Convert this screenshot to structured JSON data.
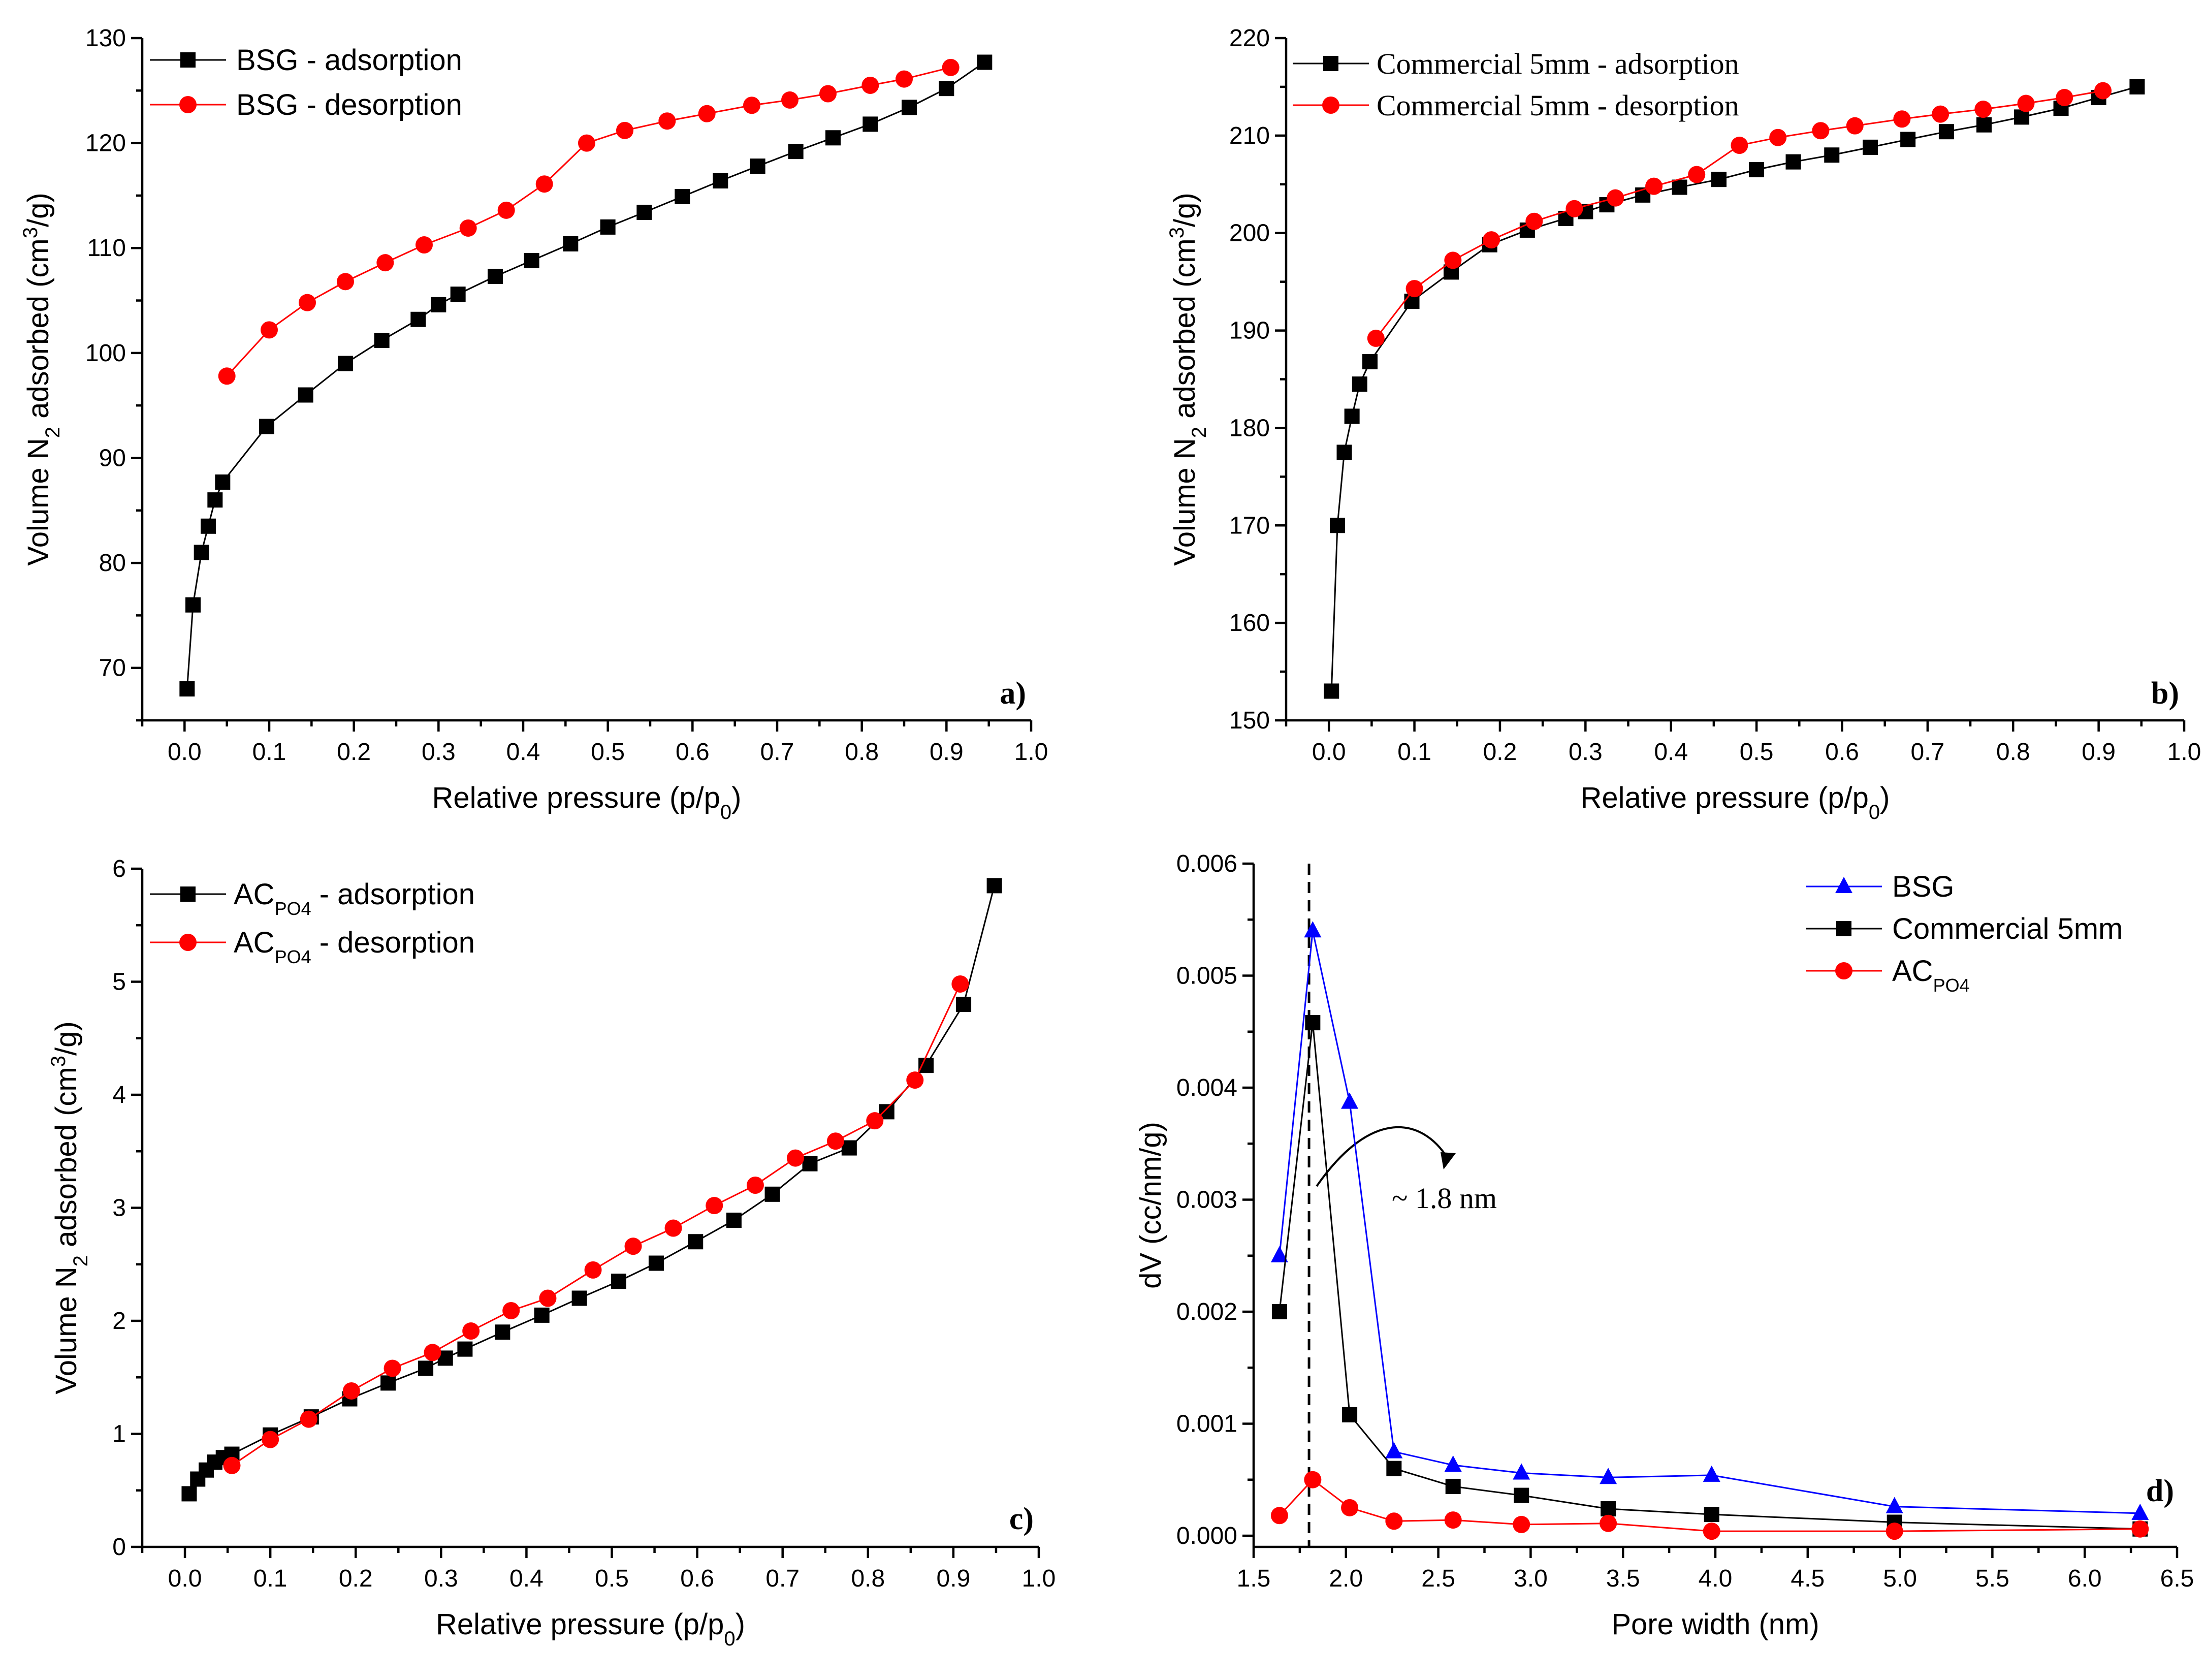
{
  "chart_data": [
    {
      "id": "a",
      "type": "scatter",
      "panel_label": "a)",
      "xlabel": "Relative pressure (p/p0)",
      "ylabel": "Volume N2 adsorbed (cm3/g)",
      "xlim": [
        -0.05,
        1.0
      ],
      "ylim": [
        65,
        130
      ],
      "xticks": [
        0.0,
        0.1,
        0.2,
        0.3,
        0.4,
        0.5,
        0.6,
        0.7,
        0.8,
        0.9,
        1.0
      ],
      "xtick_labels": [
        "0.0",
        "0.1",
        "0.2",
        "0.3",
        "0.4",
        "0.5",
        "0.6",
        "0.7",
        "0.8",
        "0.9",
        "1.0"
      ],
      "yticks": [
        70,
        80,
        90,
        100,
        110,
        120,
        130
      ],
      "ytick_labels": [
        "70",
        "80",
        "90",
        "100",
        "110",
        "120",
        "130"
      ],
      "legend_position": "top-left",
      "series": [
        {
          "name": "BSG - adsorption",
          "color": "#000000",
          "marker": "square",
          "x": [
            0.003,
            0.01,
            0.02,
            0.028,
            0.036,
            0.045,
            0.097,
            0.143,
            0.19,
            0.233,
            0.276,
            0.3,
            0.323,
            0.367,
            0.41,
            0.456,
            0.5,
            0.543,
            0.588,
            0.633,
            0.677,
            0.722,
            0.766,
            0.81,
            0.856,
            0.9,
            0.945
          ],
          "y": [
            68,
            76,
            81,
            83.5,
            86,
            87.7,
            93,
            96,
            99,
            101.2,
            103.2,
            104.6,
            105.6,
            107.3,
            108.8,
            110.4,
            112,
            113.4,
            114.9,
            116.4,
            117.8,
            119.2,
            120.5,
            121.8,
            123.4,
            125.2,
            127.7
          ]
        },
        {
          "name": "BSG - desorption",
          "color": "#ff0000",
          "marker": "circle",
          "x": [
            0.05,
            0.1,
            0.145,
            0.19,
            0.237,
            0.283,
            0.335,
            0.38,
            0.425,
            0.475,
            0.52,
            0.57,
            0.617,
            0.67,
            0.715,
            0.76,
            0.81,
            0.85,
            0.905
          ],
          "y": [
            97.8,
            102.2,
            104.8,
            106.8,
            108.6,
            110.3,
            111.9,
            113.6,
            116.1,
            120,
            121.2,
            122.1,
            122.8,
            123.6,
            124.1,
            124.7,
            125.5,
            126.1,
            127.2
          ]
        }
      ]
    },
    {
      "id": "b",
      "type": "scatter",
      "panel_label": "b)",
      "xlabel": "Relative pressure (p/p0)",
      "ylabel": "Volume N2 adsorbed (cm3/g)",
      "xlim": [
        -0.05,
        1.0
      ],
      "ylim": [
        150,
        220
      ],
      "xticks": [
        0.0,
        0.1,
        0.2,
        0.3,
        0.4,
        0.5,
        0.6,
        0.7,
        0.8,
        0.9,
        1.0
      ],
      "xtick_labels": [
        "0.0",
        "0.1",
        "0.2",
        "0.3",
        "0.4",
        "0.5",
        "0.6",
        "0.7",
        "0.8",
        "0.9",
        "1.0"
      ],
      "yticks": [
        150,
        160,
        170,
        180,
        190,
        200,
        210,
        220
      ],
      "ytick_labels": [
        "150",
        "160",
        "170",
        "180",
        "190",
        "200",
        "210",
        "220"
      ],
      "legend_position": "top-left",
      "series": [
        {
          "name": "Commercial 5mm - adsorption",
          "color": "#000000",
          "marker": "square",
          "x": [
            0.003,
            0.01,
            0.018,
            0.027,
            0.036,
            0.048,
            0.097,
            0.143,
            0.188,
            0.232,
            0.277,
            0.3,
            0.325,
            0.367,
            0.41,
            0.456,
            0.5,
            0.543,
            0.588,
            0.633,
            0.677,
            0.722,
            0.766,
            0.81,
            0.856,
            0.9,
            0.945
          ],
          "y": [
            153,
            170,
            177.5,
            181.2,
            184.5,
            186.8,
            193,
            196,
            198.8,
            200.3,
            201.5,
            202.2,
            202.9,
            203.9,
            204.7,
            205.5,
            206.5,
            207.3,
            208,
            208.8,
            209.6,
            210.4,
            211.1,
            211.9,
            212.8,
            213.9,
            215
          ]
        },
        {
          "name": "Commercial 5mm - desorption",
          "color": "#ff0000",
          "marker": "circle",
          "x": [
            0.055,
            0.1,
            0.145,
            0.19,
            0.24,
            0.287,
            0.335,
            0.38,
            0.43,
            0.48,
            0.525,
            0.575,
            0.615,
            0.67,
            0.715,
            0.765,
            0.815,
            0.86,
            0.905
          ],
          "y": [
            189.2,
            194.3,
            197.2,
            199.3,
            201.2,
            202.5,
            203.6,
            204.8,
            206,
            209,
            209.8,
            210.5,
            211,
            211.7,
            212.2,
            212.7,
            213.3,
            213.9,
            214.6
          ]
        }
      ]
    },
    {
      "id": "c",
      "type": "scatter",
      "panel_label": "c)",
      "xlabel": "Relative pressure (p/p0)",
      "ylabel": "Volume N2 adsorbed (cm3/g)",
      "xlim": [
        -0.05,
        1.0
      ],
      "ylim": [
        0,
        6
      ],
      "xticks": [
        0.0,
        0.1,
        0.2,
        0.3,
        0.4,
        0.5,
        0.6,
        0.7,
        0.8,
        0.9,
        1.0
      ],
      "xtick_labels": [
        "0.0",
        "0.1",
        "0.2",
        "0.3",
        "0.4",
        "0.5",
        "0.6",
        "0.7",
        "0.8",
        "0.9",
        "1.0"
      ],
      "yticks": [
        0,
        1,
        2,
        3,
        4,
        5,
        6
      ],
      "ytick_labels": [
        "0",
        "1",
        "2",
        "3",
        "4",
        "5",
        "6"
      ],
      "legend_position": "top-left",
      "series": [
        {
          "name": "ACPO4 - adsorption",
          "color": "#000000",
          "marker": "square",
          "x": [
            0.005,
            0.015,
            0.025,
            0.035,
            0.045,
            0.055,
            0.1,
            0.148,
            0.193,
            0.238,
            0.282,
            0.305,
            0.328,
            0.372,
            0.418,
            0.462,
            0.508,
            0.552,
            0.598,
            0.643,
            0.688,
            0.732,
            0.778,
            0.822,
            0.868,
            0.912,
            0.948
          ],
          "y": [
            0.47,
            0.6,
            0.68,
            0.75,
            0.79,
            0.82,
            0.99,
            1.15,
            1.31,
            1.45,
            1.58,
            1.67,
            1.75,
            1.9,
            2.05,
            2.2,
            2.35,
            2.51,
            2.7,
            2.89,
            3.12,
            3.39,
            3.53,
            3.85,
            4.26,
            4.8,
            5.85
          ]
        },
        {
          "name": "ACPO4 - desorption",
          "color": "#ff0000",
          "marker": "circle",
          "x": [
            0.055,
            0.1,
            0.145,
            0.195,
            0.243,
            0.29,
            0.335,
            0.382,
            0.425,
            0.478,
            0.525,
            0.572,
            0.62,
            0.668,
            0.715,
            0.762,
            0.808,
            0.855,
            0.908
          ],
          "y": [
            0.72,
            0.95,
            1.13,
            1.38,
            1.58,
            1.72,
            1.91,
            2.09,
            2.2,
            2.45,
            2.66,
            2.82,
            3.02,
            3.2,
            3.44,
            3.59,
            3.77,
            4.13,
            4.98
          ]
        }
      ]
    },
    {
      "id": "d",
      "type": "scatter",
      "panel_label": "d)",
      "xlabel": "Pore width (nm)",
      "ylabel": "dV (cc/nm/g)",
      "xlim": [
        1.5,
        6.5
      ],
      "ylim": [
        -0.0001,
        0.006
      ],
      "xticks": [
        1.5,
        2.0,
        2.5,
        3.0,
        3.5,
        4.0,
        4.5,
        5.0,
        5.5,
        6.0,
        6.5
      ],
      "xtick_labels": [
        "1.5",
        "2.0",
        "2.5",
        "3.0",
        "3.5",
        "4.0",
        "4.5",
        "5.0",
        "5.5",
        "6.0",
        "6.5"
      ],
      "yticks": [
        0,
        0.001,
        0.002,
        0.003,
        0.004,
        0.005,
        0.006
      ],
      "ytick_labels": [
        "0.000",
        "0.001",
        "0.002",
        "0.003",
        "0.004",
        "0.005",
        "0.006"
      ],
      "legend_position": "top-right",
      "annotation": "~ 1.8 nm",
      "vline_x": 1.8,
      "series": [
        {
          "name": "BSG",
          "color": "#0000ff",
          "marker": "triangle",
          "x": [
            1.64,
            1.82,
            2.02,
            2.26,
            2.58,
            2.95,
            3.42,
            3.98,
            4.97,
            6.3
          ],
          "y": [
            0.0025,
            0.0054,
            0.00387,
            0.00075,
            0.00063,
            0.00056,
            0.00052,
            0.00054,
            0.00026,
            0.0002
          ]
        },
        {
          "name": "Commercial 5mm",
          "color": "#000000",
          "marker": "square",
          "x": [
            1.64,
            1.82,
            2.02,
            2.26,
            2.58,
            2.95,
            3.42,
            3.98,
            4.97,
            6.3
          ],
          "y": [
            0.002,
            0.00458,
            0.00108,
            0.0006,
            0.00044,
            0.00036,
            0.00024,
            0.00019,
            0.00012,
            6e-05
          ]
        },
        {
          "name": "ACPO4",
          "color": "#ff0000",
          "marker": "circle",
          "x": [
            1.64,
            1.82,
            2.02,
            2.26,
            2.58,
            2.95,
            3.42,
            3.98,
            4.97,
            6.3
          ],
          "y": [
            0.00018,
            0.0005,
            0.00025,
            0.00013,
            0.00014,
            0.0001,
            0.00011,
            4e-05,
            4e-05,
            6e-05
          ]
        }
      ]
    }
  ],
  "labels": {
    "x_rel_main": "Relative pressure (p/p",
    "x_rel_sub": "0",
    "x_rel_end": ")",
    "y_vol_a": "Volume N",
    "y_vol_sub": "2",
    "y_vol_b": " adsorbed (cm",
    "y_vol_sup": "3",
    "y_vol_c": "/g)",
    "ac_main": "AC",
    "ac_sub": "PO4",
    "adsorption_suffix": " - adsorption",
    "desorption_suffix": " - desorption"
  }
}
